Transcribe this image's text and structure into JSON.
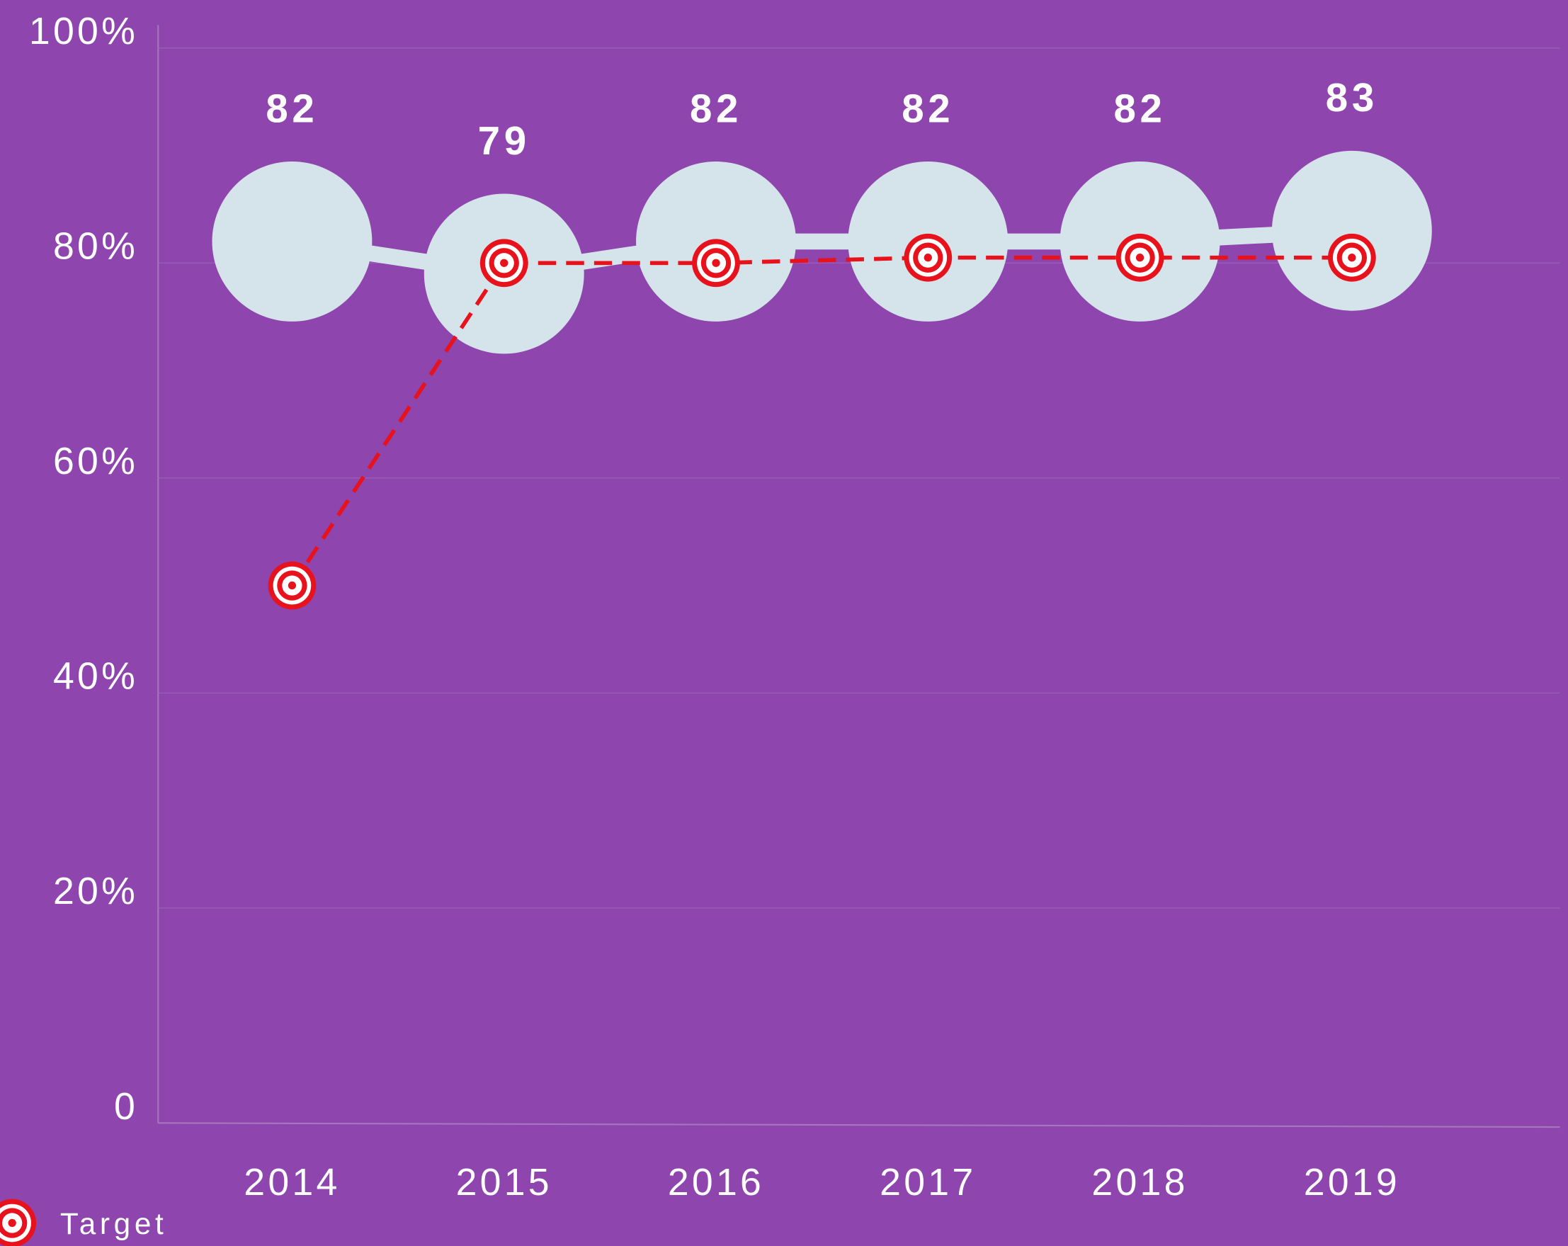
{
  "chart_data": {
    "type": "line",
    "categories": [
      "2014",
      "2015",
      "2016",
      "2017",
      "2018",
      "2019"
    ],
    "series": [
      {
        "name": null,
        "color": "#d5e3ea",
        "values": [
          82,
          79,
          82,
          82,
          82,
          83
        ]
      },
      {
        "name": "Target",
        "color": "#e8121c",
        "values": [
          50,
          80,
          80,
          80.5,
          80.5,
          80.5
        ]
      }
    ],
    "ylim": [
      0,
      100
    ],
    "yticks": [
      0,
      {
        "value": 20,
        "label": "20%"
      },
      {
        "value": 40,
        "label": "40%"
      },
      {
        "value": 60,
        "label": "60%"
      },
      {
        "value": 80,
        "label": "80%"
      },
      {
        "value": 100,
        "label": "100%"
      }
    ],
    "grid": true
  }
}
